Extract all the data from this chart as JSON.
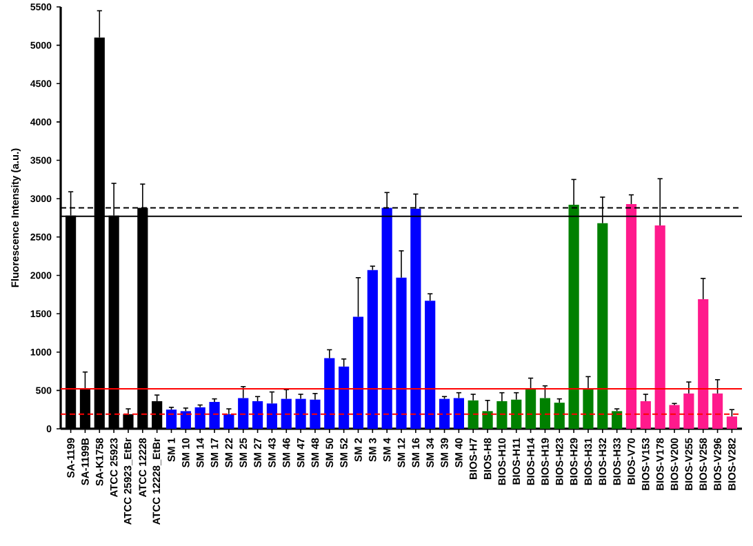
{
  "chart_data": {
    "type": "bar",
    "ylabel": "Fluorescence Intensity (a.u.)",
    "categories": [
      "SA-1199",
      "SA-1199B",
      "SA-K1758",
      "ATCC 25923",
      "ATCC 25923_EtBr",
      "ATCC 12228",
      "ATCC 12228_EtBr",
      "SM 1",
      "SM 10",
      "SM 14",
      "SM 17",
      "SM 22",
      "SM 25",
      "SM 27",
      "SM 43",
      "SM 46",
      "SM 47",
      "SM 48",
      "SM 50",
      "SM 52",
      "SM 2",
      "SM 3",
      "SM 4",
      "SM 12",
      "SM 16",
      "SM 34",
      "SM 39",
      "SM 40",
      "BIOS-H7",
      "BIOS-H8",
      "BIOS-H10",
      "BIOS-H11",
      "BIOS-H14",
      "BIOS-H19",
      "BIOS-H23",
      "BIOS-H29",
      "BIOS-H31",
      "BIOS-H32",
      "BIOS-H33",
      "BIOS-V70",
      "BIOS-V153",
      "BIOS-V178",
      "BIOS-V200",
      "BIOS-V255",
      "BIOS-V258",
      "BIOS-V296",
      "BIOS-V282"
    ],
    "values": [
      2780,
      520,
      5100,
      2780,
      190,
      2880,
      360,
      250,
      230,
      280,
      350,
      190,
      400,
      360,
      330,
      390,
      390,
      380,
      920,
      810,
      1460,
      2070,
      2880,
      1970,
      2870,
      1670,
      390,
      400,
      370,
      230,
      360,
      380,
      530,
      400,
      340,
      2920,
      520,
      2680,
      230,
      2930,
      360,
      2650,
      310,
      460,
      1690,
      460,
      160
    ],
    "errors": [
      [
        2780,
        3090
      ],
      [
        520,
        740
      ],
      [
        5100,
        5450
      ],
      [
        2780,
        3200
      ],
      [
        190,
        260
      ],
      [
        2880,
        3190
      ],
      [
        360,
        440
      ],
      [
        250,
        280
      ],
      [
        230,
        270
      ],
      [
        280,
        310
      ],
      [
        350,
        390
      ],
      [
        190,
        260
      ],
      [
        400,
        550
      ],
      [
        360,
        420
      ],
      [
        330,
        480
      ],
      [
        390,
        510
      ],
      [
        390,
        450
      ],
      [
        380,
        460
      ],
      [
        920,
        1030
      ],
      [
        810,
        910
      ],
      [
        1460,
        1970
      ],
      [
        2070,
        2120
      ],
      [
        2880,
        3080
      ],
      [
        1970,
        2320
      ],
      [
        2870,
        3060
      ],
      [
        1670,
        1760
      ],
      [
        390,
        420
      ],
      [
        400,
        470
      ],
      [
        370,
        450
      ],
      [
        230,
        370
      ],
      [
        360,
        470
      ],
      [
        380,
        470
      ],
      [
        530,
        660
      ],
      [
        400,
        560
      ],
      [
        340,
        390
      ],
      [
        2920,
        3250
      ],
      [
        520,
        680
      ],
      [
        2680,
        3020
      ],
      [
        230,
        260
      ],
      [
        2930,
        3050
      ],
      [
        360,
        450
      ],
      [
        2650,
        3260
      ],
      [
        310,
        330
      ],
      [
        460,
        610
      ],
      [
        1690,
        1960
      ],
      [
        460,
        640
      ],
      [
        160,
        250
      ]
    ],
    "colors": [
      "#000000",
      "#000000",
      "#000000",
      "#000000",
      "#000000",
      "#000000",
      "#000000",
      "#0000ff",
      "#0000ff",
      "#0000ff",
      "#0000ff",
      "#0000ff",
      "#0000ff",
      "#0000ff",
      "#0000ff",
      "#0000ff",
      "#0000ff",
      "#0000ff",
      "#0000ff",
      "#0000ff",
      "#0000ff",
      "#0000ff",
      "#0000ff",
      "#0000ff",
      "#0000ff",
      "#0000ff",
      "#0000ff",
      "#0000ff",
      "#008000",
      "#008000",
      "#008000",
      "#008000",
      "#008000",
      "#008000",
      "#008000",
      "#008000",
      "#008000",
      "#008000",
      "#008000",
      "#ff1a8c",
      "#ff1a8c",
      "#ff1a8c",
      "#ff1a8c",
      "#ff1a8c",
      "#ff1a8c",
      "#ff1a8c",
      "#ff1a8c"
    ],
    "ylim": [
      0,
      5500
    ],
    "yticks": [
      0,
      500,
      1000,
      1500,
      2000,
      2500,
      3000,
      3500,
      4000,
      4500,
      5000,
      5500
    ],
    "ref_lines": [
      {
        "axis": "y",
        "value": 2770,
        "color": "#000000",
        "line_style": "solid"
      },
      {
        "axis": "y",
        "value": 2880,
        "color": "#000000",
        "line_style": "dashed"
      },
      {
        "axis": "y",
        "value": 520,
        "color": "#ff0000",
        "line_style": "solid"
      },
      {
        "axis": "y",
        "value": 190,
        "color": "#ff0000",
        "line_style": "dashed"
      }
    ]
  }
}
